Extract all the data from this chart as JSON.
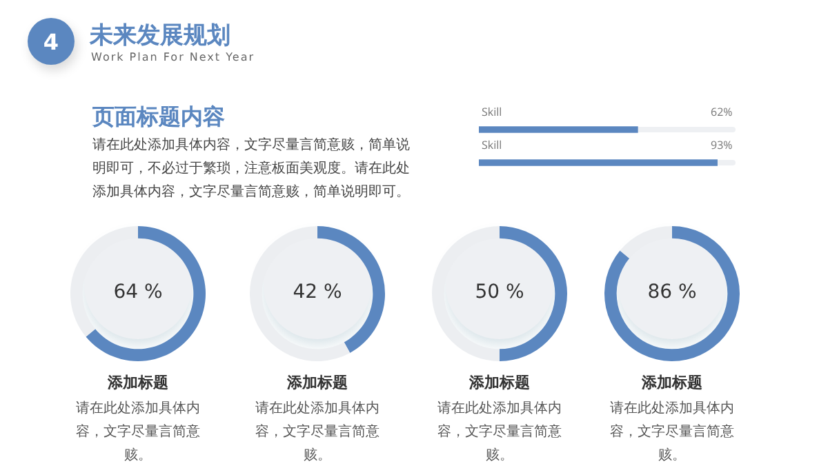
{
  "chart_data": [
    {
      "type": "other",
      "title": "未来发展规划",
      "subtitle": "Work Plan For Next Year",
      "annotations": [
        "4",
        "页面标题内容",
        "请在此处添加具体内容，文字尽量言简意赅，简单说明即可，不必过于繁琐，注意板面美观度。请在此处添加具体内容，文字尽量言简意赅，简单说明即可。"
      ]
    },
    {
      "type": "bar",
      "orientation": "horizontal",
      "categories": [
        "Skill",
        "Skill"
      ],
      "values": [
        62,
        93
      ],
      "value_labels": [
        "62%",
        "93%"
      ],
      "color": "#5b87c0",
      "xlim": [
        0,
        100
      ]
    },
    {
      "type": "donut",
      "title": "添加标题",
      "annotations": [
        "64 %",
        "请在此处添加具体内容，文字尽量言简意赅。"
      ],
      "categories": [
        null,
        null
      ],
      "values": [
        64,
        36
      ],
      "colors": [
        "#5b87c0",
        "#eceef1"
      ]
    },
    {
      "type": "donut",
      "title": "添加标题",
      "annotations": [
        "42 %",
        "请在此处添加具体内容，文字尽量言简意赅。"
      ],
      "categories": [
        null,
        null
      ],
      "values": [
        42,
        58
      ],
      "colors": [
        "#5b87c0",
        "#eceef1"
      ]
    },
    {
      "type": "donut",
      "title": "添加标题",
      "annotations": [
        "50 %",
        "请在此处添加具体内容，文字尽量言简意赅。"
      ],
      "categories": [
        null,
        null
      ],
      "values": [
        50,
        50
      ],
      "colors": [
        "#5b87c0",
        "#eceef1"
      ]
    },
    {
      "type": "donut",
      "title": "添加标题",
      "annotations": [
        "86 %",
        "请在此处添加具体内容，文字尽量言简意赅。"
      ],
      "categories": [
        null,
        null
      ],
      "values": [
        86,
        14
      ],
      "colors": [
        "#5b87c0",
        "#eceef1"
      ]
    }
  ]
}
